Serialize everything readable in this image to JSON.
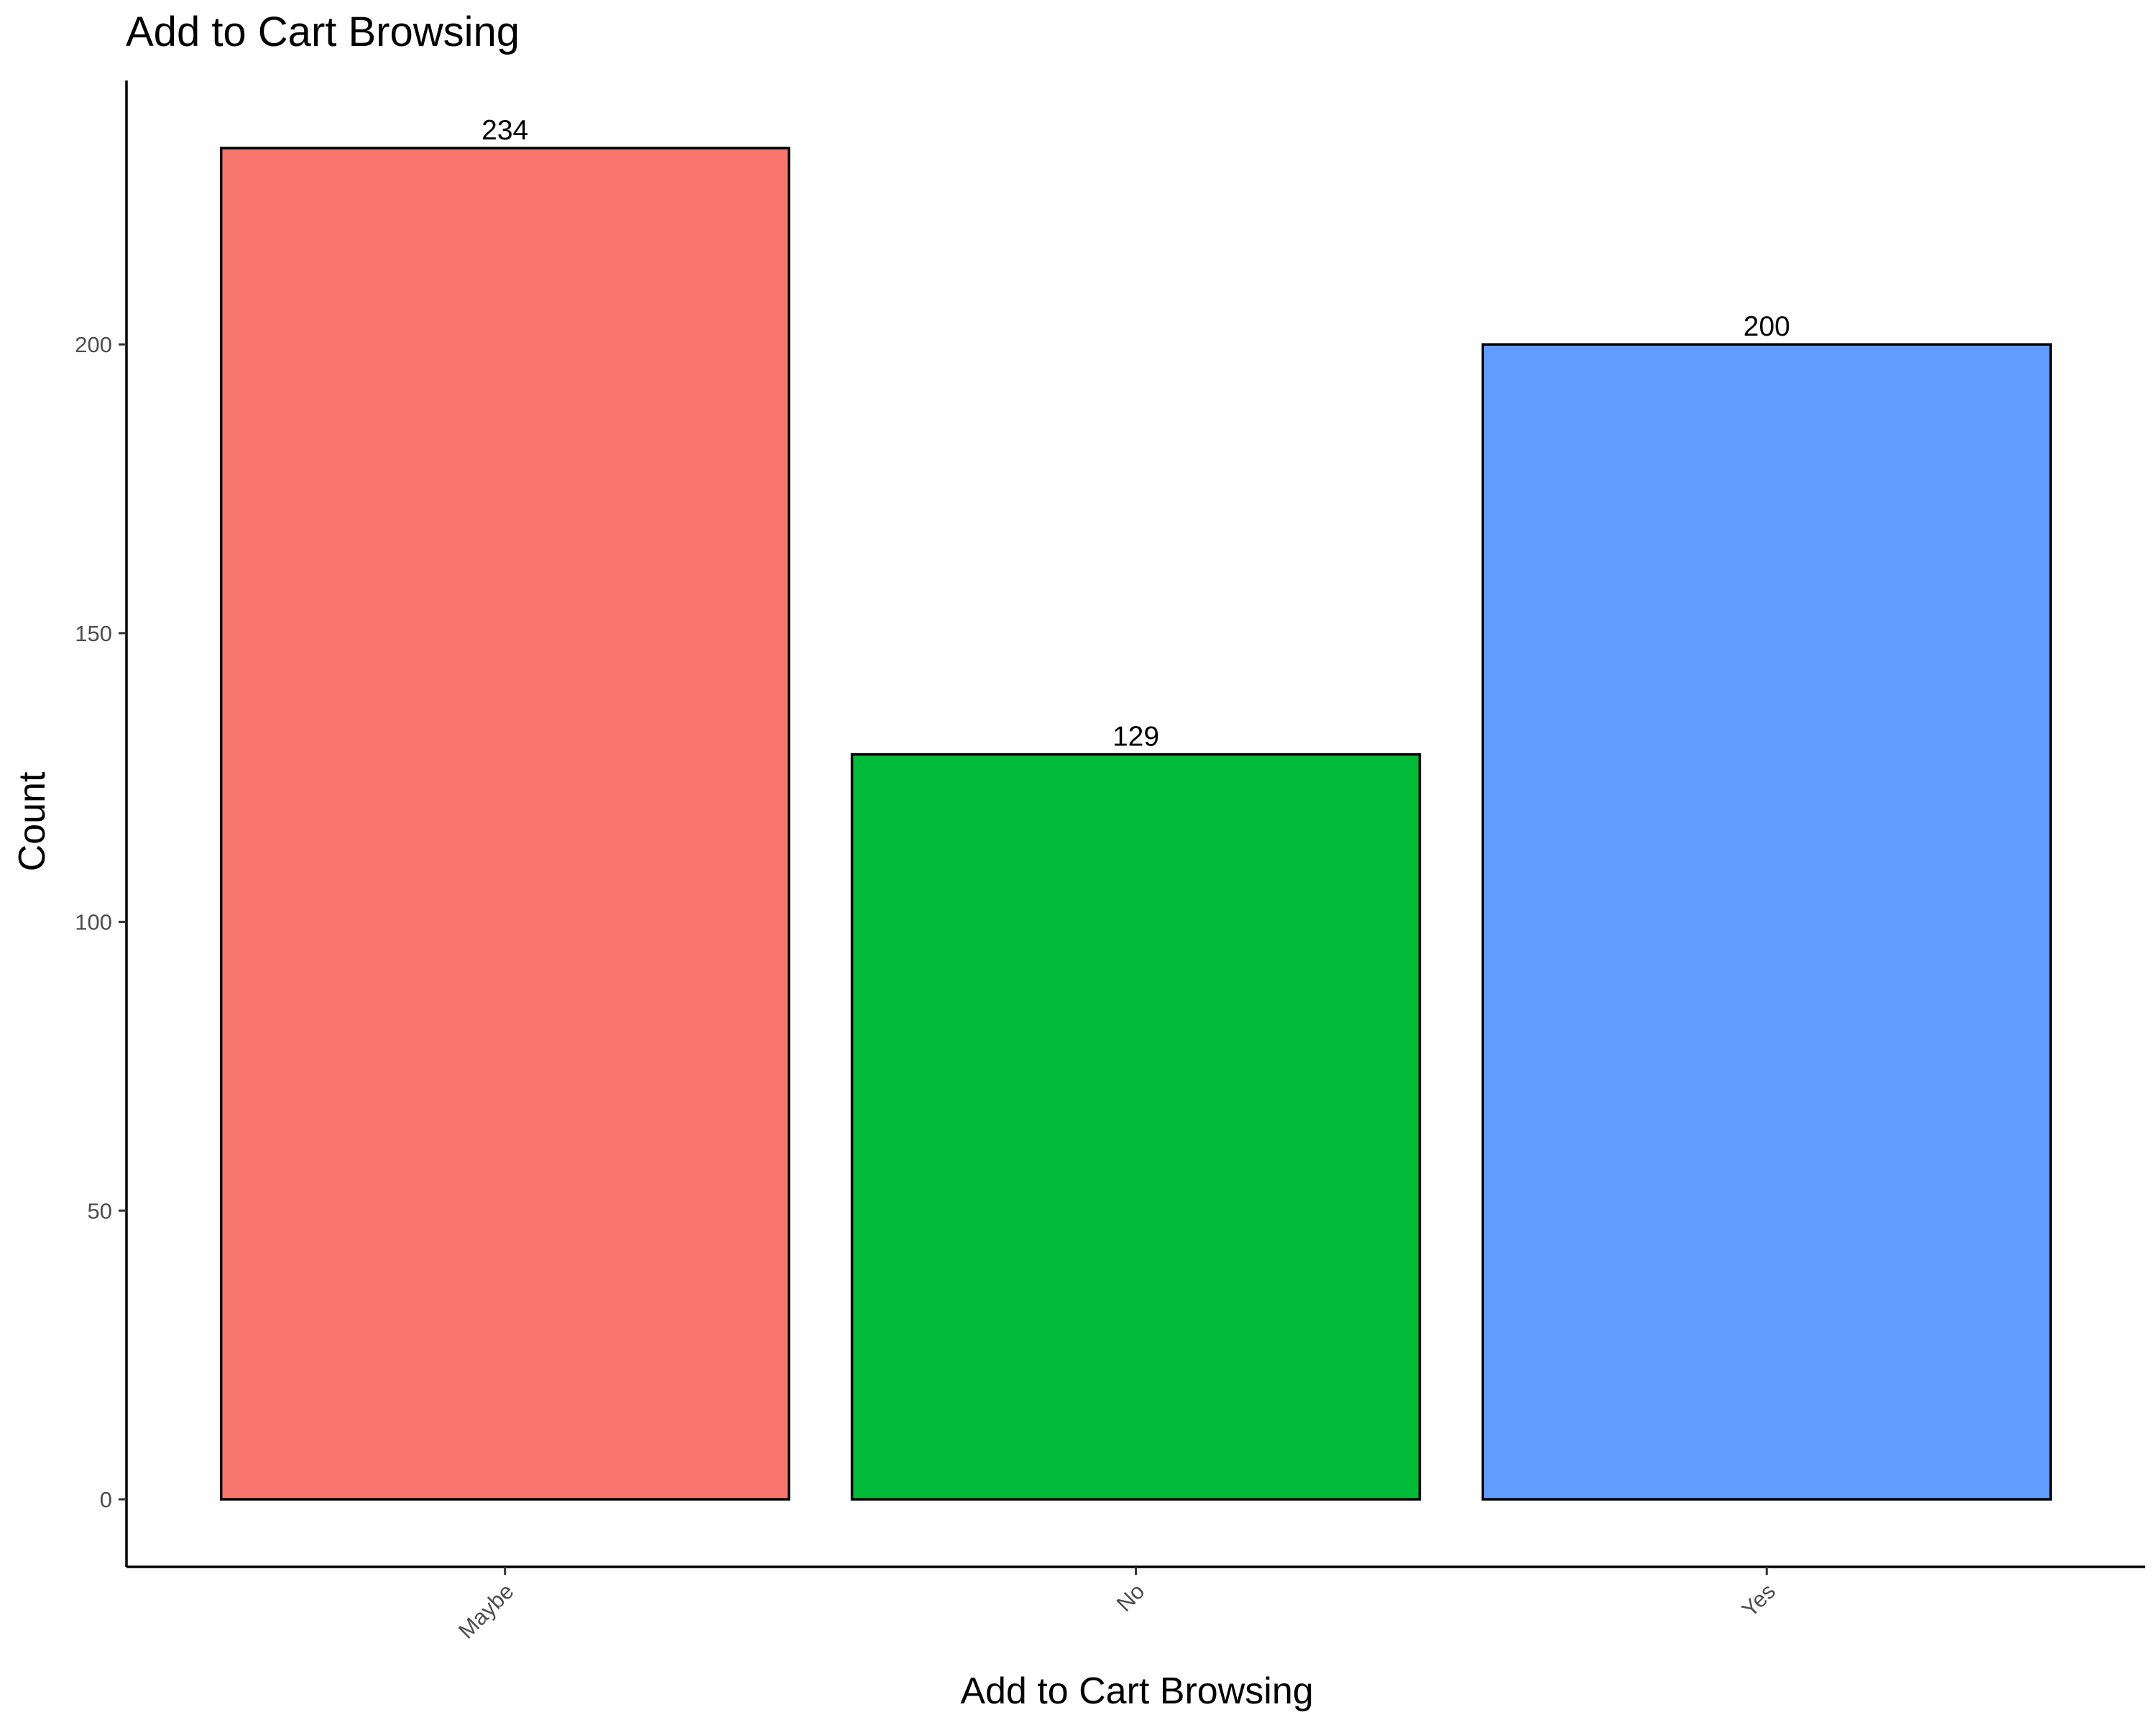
{
  "chart_data": {
    "type": "bar",
    "title": "Add to Cart Browsing",
    "xlabel": "Add to Cart Browsing",
    "ylabel": "Count",
    "categories": [
      "Maybe",
      "No",
      "Yes"
    ],
    "values": [
      234,
      129,
      200
    ],
    "data_labels": [
      "234",
      "129",
      "200"
    ],
    "colors": [
      "#F8766D",
      "#00BA38",
      "#619CFF"
    ],
    "ylim": [
      -11.7,
      245.7
    ],
    "yticks": [
      0,
      50,
      100,
      150,
      200
    ],
    "ytick_labels": [
      "0",
      "50",
      "100",
      "150",
      "200"
    ],
    "grid": false,
    "legend": "none"
  }
}
